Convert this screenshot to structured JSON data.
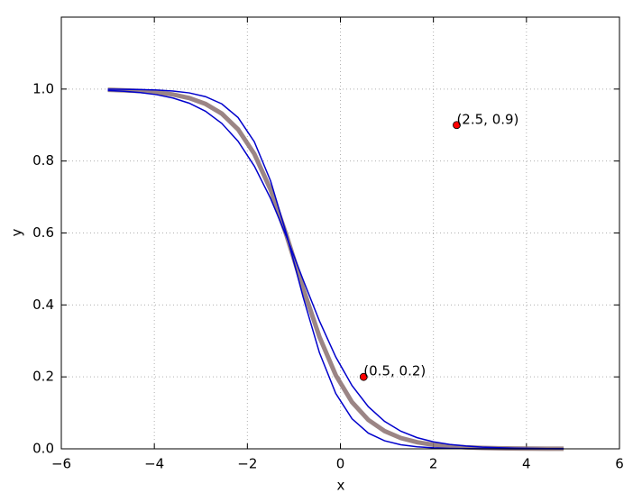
{
  "chart_data": {
    "type": "line",
    "xlabel": "x",
    "ylabel": "y",
    "x": [
      -5,
      -4.65,
      -4.3,
      -3.95,
      -3.6,
      -3.25,
      -2.9,
      -2.55,
      -2.2,
      -1.85,
      -1.5,
      -1.15,
      -0.8,
      -0.45,
      -0.1,
      0.25,
      0.6,
      0.95,
      1.3,
      1.65,
      2,
      2.35,
      2.7,
      3.05,
      3.4,
      3.75,
      4.1,
      4.45,
      4.8
    ],
    "series": [
      {
        "color": "#8a7070",
        "values": [
          0.998,
          0.9966,
          0.9945,
          0.9909,
          0.985,
          0.9751,
          0.9587,
          0.9318,
          0.888,
          0.8197,
          0.7201,
          0.59,
          0.4455,
          0.3111,
          0.2048,
          0.1297,
          0.0804,
          0.0493,
          0.0301,
          0.0184,
          0.0112,
          0.0069,
          0.0042,
          0.0026,
          0.0016,
          0.001,
          0.0006,
          0.0004,
          0.0002
        ]
      },
      {
        "color": "#0000cc",
        "values": [
          0.9962,
          0.9939,
          0.9903,
          0.9844,
          0.9752,
          0.9608,
          0.9384,
          0.9046,
          0.855,
          0.7859,
          0.6957,
          0.5871,
          0.4695,
          0.3552,
          0.2554,
          0.1758,
          0.1172,
          0.0763,
          0.0489,
          0.031,
          0.0195,
          0.0123,
          0.0077,
          0.0048,
          0.003,
          0.0019,
          0.0012,
          0.0007,
          0.0004
        ]
      },
      {
        "color": "#0000cc",
        "values": [
          0.9997,
          0.9993,
          0.9987,
          0.9973,
          0.9947,
          0.9894,
          0.979,
          0.9589,
          0.9209,
          0.8535,
          0.7444,
          0.5929,
          0.4214,
          0.267,
          0.1541,
          0.0835,
          0.0436,
          0.0223,
          0.0113,
          0.0057,
          0.0028,
          0.0014,
          0.0007,
          0.0004,
          0.0002,
          0.0001,
          0,
          0,
          0
        ]
      }
    ],
    "points": {
      "color": "#ff0000",
      "x": [
        0.5,
        2.5
      ],
      "y": [
        0.2,
        0.9
      ],
      "labels": [
        "(0.5, 0.2)",
        "(2.5, 0.9)"
      ]
    },
    "xlim": [
      -6,
      6
    ],
    "xticks": [
      {
        "value": -6,
        "label": "−6"
      },
      {
        "value": -4,
        "label": "−4"
      },
      {
        "value": -2,
        "label": "−2"
      },
      0,
      2,
      4,
      6
    ],
    "ylim": [
      0,
      1.2
    ],
    "yticks": [
      {
        "value": 0,
        "label": "0.0"
      },
      {
        "value": 0.2,
        "label": "0.2"
      },
      {
        "value": 0.4,
        "label": "0.4"
      },
      {
        "value": 0.6,
        "label": "0.6"
      },
      {
        "value": 0.8,
        "label": "0.8"
      },
      {
        "value": 1,
        "label": "1.0"
      }
    ],
    "grid": true
  }
}
